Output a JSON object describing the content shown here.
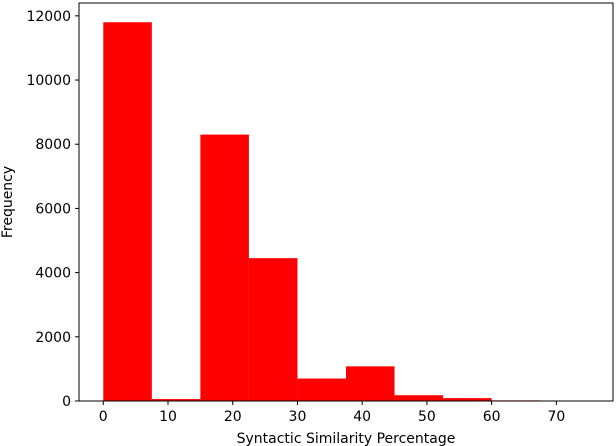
{
  "chart_data": {
    "type": "bar",
    "title": "",
    "xlabel": "Syntactic Similarity Percentage",
    "ylabel": "Frequency",
    "xlim": [
      -3.75,
      78.75
    ],
    "ylim": [
      0,
      12400
    ],
    "x_ticks": [
      "0",
      "10",
      "20",
      "30",
      "40",
      "50",
      "60",
      "70"
    ],
    "y_ticks": [
      "0",
      "2000",
      "4000",
      "6000",
      "8000",
      "10000",
      "12000"
    ],
    "bar_color": "#ff0000",
    "bins": [
      {
        "start": 0,
        "end": 7.5,
        "value": 11800
      },
      {
        "start": 7.5,
        "end": 15,
        "value": 60
      },
      {
        "start": 15,
        "end": 22.5,
        "value": 8300
      },
      {
        "start": 22.5,
        "end": 30,
        "value": 4450
      },
      {
        "start": 30,
        "end": 37.5,
        "value": 700
      },
      {
        "start": 37.5,
        "end": 45,
        "value": 1080
      },
      {
        "start": 45,
        "end": 52.5,
        "value": 180
      },
      {
        "start": 52.5,
        "end": 60,
        "value": 90
      },
      {
        "start": 60,
        "end": 67.5,
        "value": 20
      },
      {
        "start": 67.5,
        "end": 75,
        "value": 10
      }
    ]
  }
}
